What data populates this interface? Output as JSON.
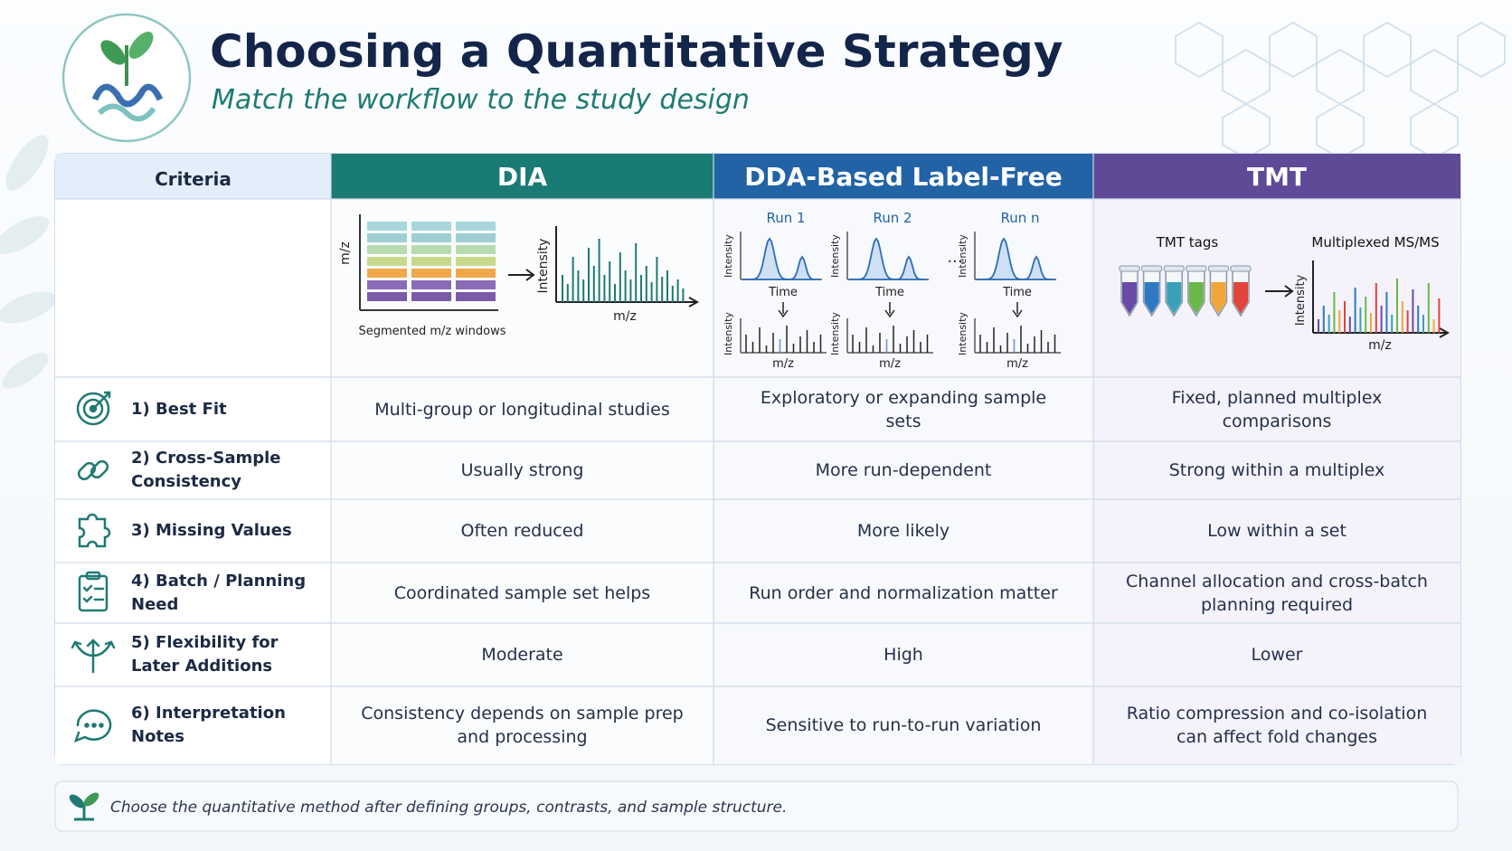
{
  "header": {
    "title": "Choosing a Quantitative Strategy",
    "subtitle": "Match the workflow to the study design"
  },
  "table": {
    "columns": [
      "Criteria",
      "DIA",
      "DDA-Based Label-Free",
      "TMT"
    ],
    "rows": [
      [
        "1) Best Fit",
        "Multi-group or longitudinal studies",
        "Exploratory or expanding sample sets",
        "Fixed, planned multiplex comparisons"
      ],
      [
        "2) Cross-Sample Consistency",
        "Usually strong",
        "More run-dependent",
        "Strong within a multiplex"
      ],
      [
        "3) Missing Values",
        "Often reduced",
        "More likely",
        "Low within a set"
      ],
      [
        "4) Batch / Planning Need",
        "Coordinated sample set helps",
        "Run order and normalization matter",
        "Channel allocation and cross-batch planning required"
      ],
      [
        "5) Flexibility for Later Additions",
        "Moderate",
        "High",
        "Lower"
      ],
      [
        "6) Interpretation Notes",
        "Consistency depends on sample prep and processing",
        "Sensitive to run-to-run variation",
        "Ratio compression and co-isolation can affect fold changes"
      ]
    ]
  },
  "illustrations": {
    "dia": {
      "y_axis": "m/z",
      "caption": "Segmented m/z windows",
      "spectrum_y": "Intensity",
      "spectrum_x": "m/z"
    },
    "dda": {
      "runs": [
        "Run 1",
        "Run 2",
        "Run n"
      ],
      "ellipsis": "...",
      "y_axis": "Intensity",
      "time": "Time",
      "x_axis": "m/z"
    },
    "tmt": {
      "tags": "TMT tags",
      "spectrum_title": "Multiplexed MS/MS",
      "y_axis": "Intensity",
      "x_axis": "m/z"
    }
  },
  "footer": {
    "note": "Choose the quantitative method after defining groups, contrasts, and sample structure."
  }
}
